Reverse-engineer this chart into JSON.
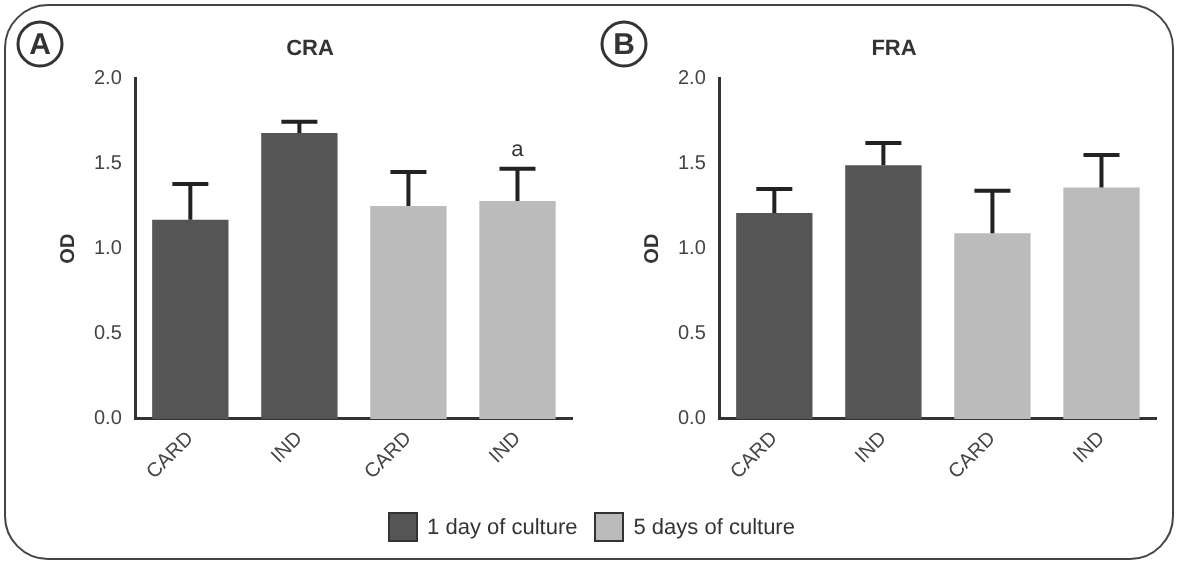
{
  "chart_data": [
    {
      "type": "bar",
      "title": "CRA",
      "ylabel": "OD",
      "categories": [
        "CARD",
        "IND",
        "CARD",
        "IND"
      ],
      "series": [
        {
          "name": "1 day of culture",
          "color": "#555555",
          "values": [
            1.17,
            1.68,
            null,
            null
          ],
          "errors": [
            0.21,
            0.065,
            null,
            null
          ]
        },
        {
          "name": "5 days of culture",
          "color": "#bbbbbb",
          "values": [
            null,
            null,
            1.25,
            1.28
          ],
          "errors": [
            null,
            null,
            0.2,
            0.19
          ]
        }
      ],
      "ylim": [
        0,
        2
      ],
      "yticks": [
        {
          "value": 0,
          "label": "0.0"
        },
        {
          "value": 0.5,
          "label": "0.5"
        },
        {
          "value": 1,
          "label": "1.0"
        },
        {
          "value": 1.5,
          "label": "1.5"
        },
        {
          "value": 2,
          "label": "2.0"
        }
      ],
      "grid": false,
      "legend": "bottom",
      "annotations": [
        "A",
        "a"
      ]
    },
    {
      "type": "bar",
      "title": "FRA",
      "ylabel": "OD",
      "categories": [
        "CARD",
        "IND",
        "CARD",
        "IND"
      ],
      "series": [
        {
          "color": "#555555",
          "values": [
            1.21,
            1.49,
            null,
            null
          ],
          "errors": [
            0.14,
            0.13,
            null,
            null
          ]
        },
        {
          "color": "#bbbbbb",
          "values": [
            null,
            null,
            1.09,
            1.36
          ],
          "errors": [
            null,
            null,
            0.25,
            0.19
          ]
        }
      ],
      "ylim": [
        0,
        2
      ],
      "yticks": [
        {
          "value": 0,
          "label": "0.0"
        },
        {
          "value": 0.5,
          "label": "0.5"
        },
        {
          "value": 1,
          "label": "1.0"
        },
        {
          "value": 1.5,
          "label": "1.5"
        },
        {
          "value": 2,
          "label": "2.0"
        }
      ],
      "grid": false,
      "annotations": [
        "B"
      ]
    }
  ]
}
